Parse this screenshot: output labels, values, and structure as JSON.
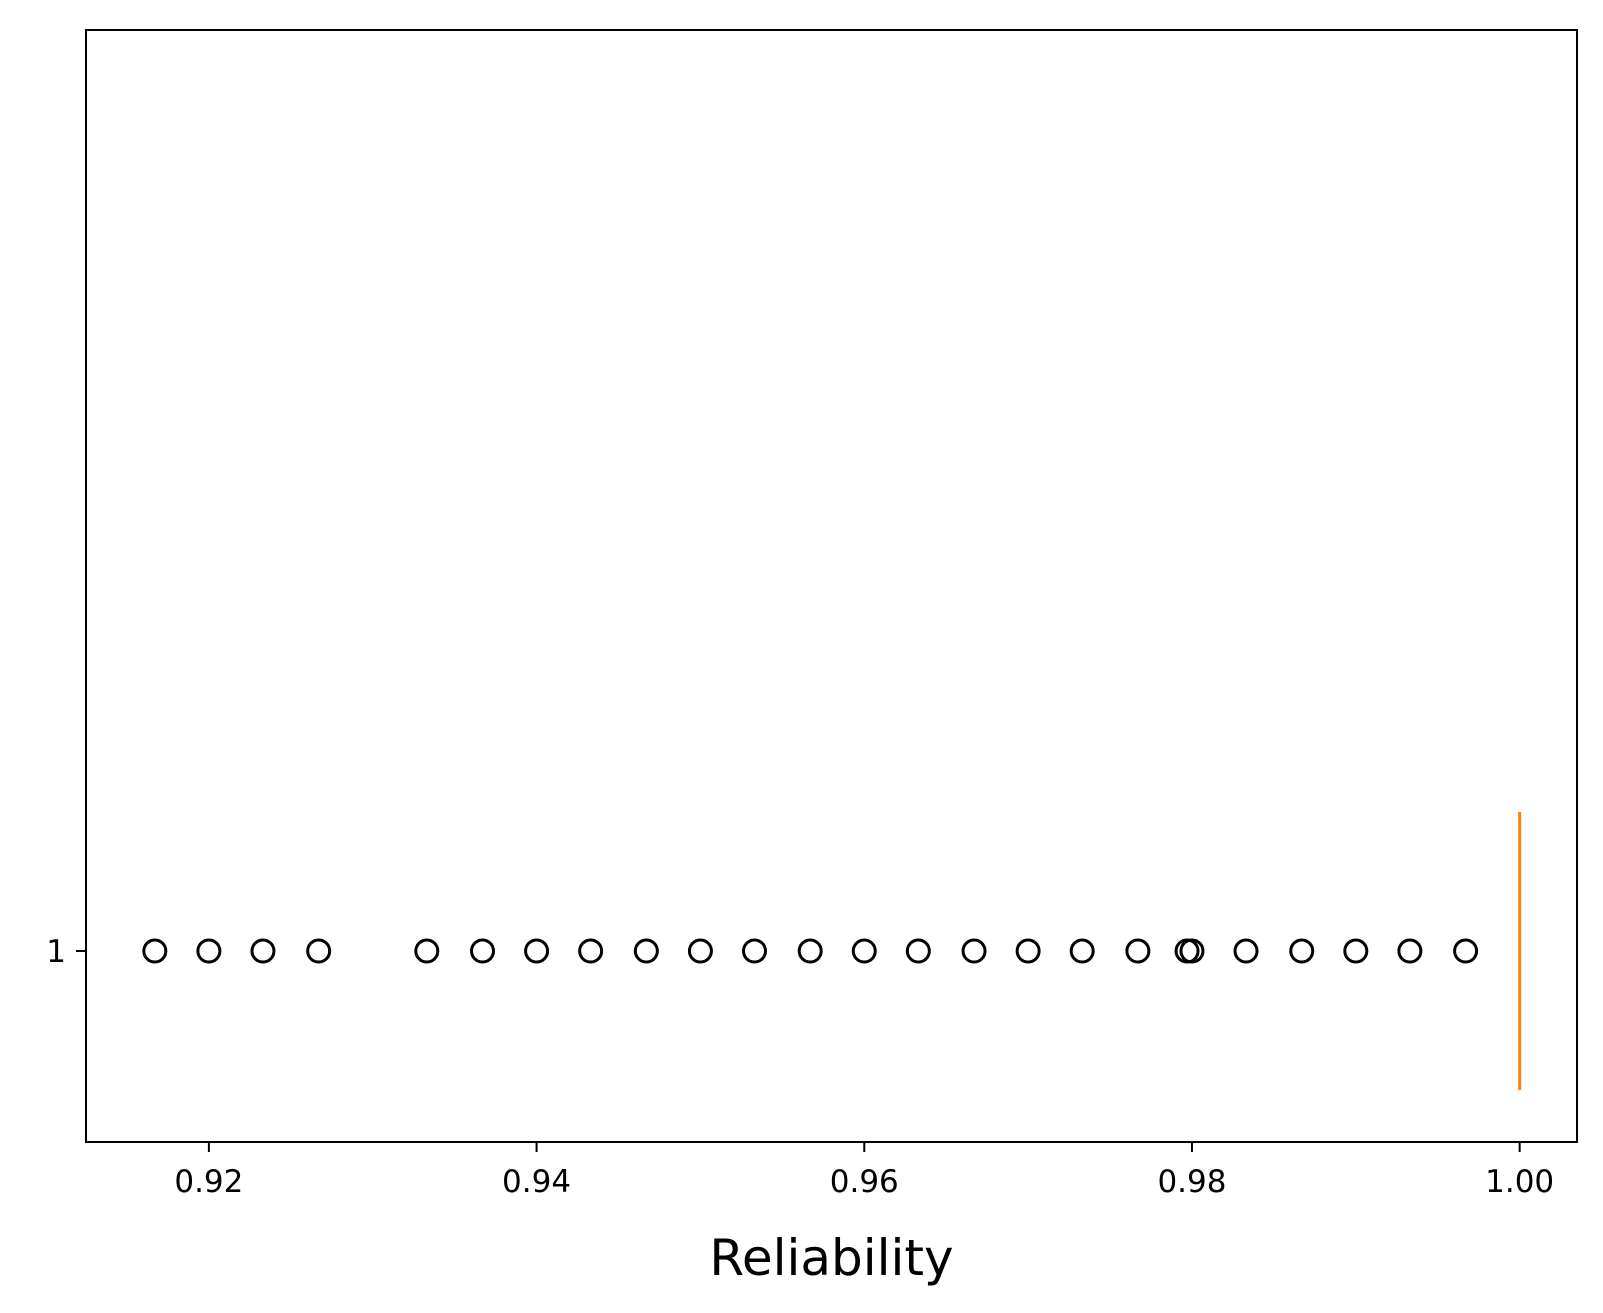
{
  "chart_data": {
    "type": "boxplot",
    "orientation": "horizontal",
    "title": "",
    "xlabel": "Reliability",
    "ylabel": "",
    "xlim": [
      0.9125,
      1.0035
    ],
    "x_ticks": [
      0.92,
      0.94,
      0.96,
      0.98,
      1.0
    ],
    "x_tick_labels": [
      "0.92",
      "0.94",
      "0.96",
      "0.98",
      "1.00"
    ],
    "y_tick_labels": [
      "1"
    ],
    "grid": false,
    "colors": {
      "box": "#000000",
      "median": "#ff7f0e",
      "outlier_edge": "#000000"
    },
    "boxes": [
      {
        "label": "1",
        "whisker_low": 1.0,
        "q1": 1.0,
        "median": 1.0,
        "q3": 1.0,
        "whisker_high": 1.0,
        "outliers": [
          0.9167,
          0.92,
          0.9233,
          0.9267,
          0.9333,
          0.9367,
          0.94,
          0.9433,
          0.9467,
          0.95,
          0.9533,
          0.9567,
          0.96,
          0.9633,
          0.9667,
          0.97,
          0.9733,
          0.9767,
          0.9797,
          0.98,
          0.9833,
          0.9867,
          0.99,
          0.9933,
          0.9967
        ]
      }
    ]
  }
}
